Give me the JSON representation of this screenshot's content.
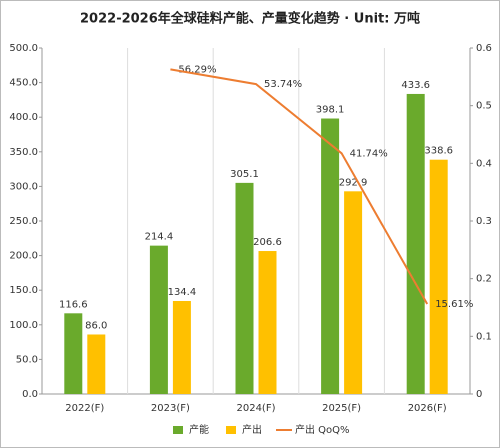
{
  "chart_data": {
    "type": "bar",
    "title": "2022-2026年全球硅料产能、产量变化趋势 · Unit: 万吨",
    "categories": [
      "2022(F)",
      "2023(F)",
      "2024(F)",
      "2025(F)",
      "2026(F)"
    ],
    "series": [
      {
        "name": "产能",
        "color": "#6aaa2c",
        "values": [
          116.6,
          214.4,
          305.1,
          398.1,
          433.6
        ],
        "value_labels": [
          "116.6",
          "214.4",
          "305.1",
          "398.1",
          "433.6"
        ]
      },
      {
        "name": "产出",
        "color": "#ffc000",
        "values": [
          86.0,
          134.4,
          206.6,
          292.9,
          338.6
        ],
        "value_labels": [
          "86.0",
          "134.4",
          "206.6",
          "292.9",
          "338.6"
        ]
      },
      {
        "name": "产出 QoQ%",
        "type": "line",
        "axis": "y2",
        "color": "#ed7d31",
        "values": [
          null,
          0.5629,
          0.5374,
          0.4174,
          0.1561
        ],
        "value_labels": [
          null,
          "56.29%",
          "53.74%",
          "41.74%",
          "15.61%"
        ]
      }
    ],
    "ylim": [
      0,
      500
    ],
    "yticks": [
      {
        "value": 0,
        "label": "0.0"
      },
      {
        "value": 50,
        "label": "50.0"
      },
      {
        "value": 100,
        "label": "100.0"
      },
      {
        "value": 150,
        "label": "150.0"
      },
      {
        "value": 200,
        "label": "200.0"
      },
      {
        "value": 250,
        "label": "250.0"
      },
      {
        "value": 300,
        "label": "300.0"
      },
      {
        "value": 350,
        "label": "350.0"
      },
      {
        "value": 400,
        "label": "400.0"
      },
      {
        "value": 450,
        "label": "450.0"
      },
      {
        "value": 500,
        "label": "500.0"
      }
    ],
    "y2lim": [
      0,
      0.6
    ],
    "y2ticks": [
      0,
      0.1,
      0.2,
      0.3,
      0.4,
      0.5,
      0.6
    ],
    "legend": "bottom"
  }
}
